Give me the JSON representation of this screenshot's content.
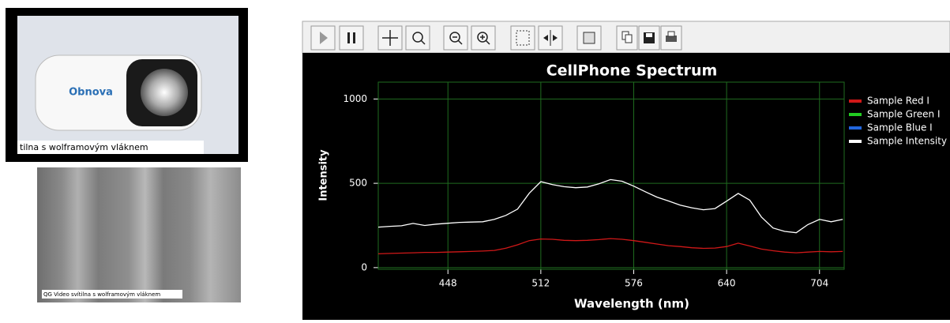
{
  "photos": [
    {
      "caption": "tilna s wolframovým vláknem"
    },
    {
      "caption": "QG Video svítilna s wolframovým vláknem"
    }
  ],
  "chart_data": {
    "type": "line",
    "title": "CellPhone Spectrum",
    "xlabel": "Wavelength (nm)",
    "ylabel": "Intensity",
    "x": [
      400,
      408,
      416,
      424,
      432,
      440,
      448,
      456,
      464,
      472,
      480,
      488,
      496,
      504,
      512,
      520,
      528,
      536,
      544,
      552,
      560,
      568,
      576,
      584,
      592,
      600,
      608,
      616,
      624,
      632,
      640,
      648,
      656,
      664,
      672,
      680,
      688,
      696,
      704,
      712,
      720
    ],
    "series": [
      {
        "name": "Sample Red I",
        "color": "#d01818",
        "values": [
          82,
          84,
          86,
          88,
          90,
          90,
          92,
          94,
          96,
          98,
          102,
          115,
          135,
          160,
          170,
          168,
          162,
          160,
          162,
          166,
          172,
          168,
          160,
          150,
          140,
          130,
          125,
          118,
          114,
          116,
          125,
          145,
          128,
          110,
          100,
          92,
          88,
          92,
          96,
          94,
          96
        ]
      },
      {
        "name": "Sample Green I",
        "color": "#22cc22",
        "values": [
          null,
          null,
          null,
          null,
          null,
          null,
          null,
          null,
          null,
          null,
          null,
          null,
          null,
          null,
          null,
          null,
          null,
          null,
          null,
          null,
          null,
          null,
          null,
          null,
          null,
          null,
          null,
          null,
          null,
          null,
          null,
          null,
          null,
          null,
          null,
          null,
          null,
          null,
          null,
          null,
          null
        ]
      },
      {
        "name": "Sample Blue I",
        "color": "#2266dd",
        "values": [
          null,
          null,
          null,
          null,
          null,
          null,
          null,
          null,
          null,
          null,
          null,
          null,
          null,
          null,
          null,
          null,
          null,
          null,
          null,
          null,
          null,
          null,
          null,
          null,
          null,
          null,
          null,
          null,
          null,
          null,
          null,
          null,
          null,
          null,
          null,
          null,
          null,
          null,
          null,
          null,
          null
        ]
      },
      {
        "name": "Sample Intensity",
        "color": "#ffffff",
        "values": [
          240,
          245,
          248,
          262,
          250,
          258,
          263,
          268,
          270,
          272,
          286,
          310,
          347,
          441,
          510,
          492,
          480,
          474,
          478,
          497,
          522,
          512,
          483,
          450,
          418,
          395,
          371,
          355,
          343,
          350,
          394,
          440,
          400,
          300,
          235,
          215,
          207,
          255,
          286,
          272,
          286
        ]
      }
    ],
    "xlim": [
      400,
      721
    ],
    "ylim": [
      -10,
      1100
    ],
    "xticks": [
      448,
      512,
      576,
      640,
      704
    ],
    "yticks": [
      0,
      500,
      1000
    ],
    "grid": true,
    "grid_color": "#1f6b1f",
    "legend": "right"
  }
}
